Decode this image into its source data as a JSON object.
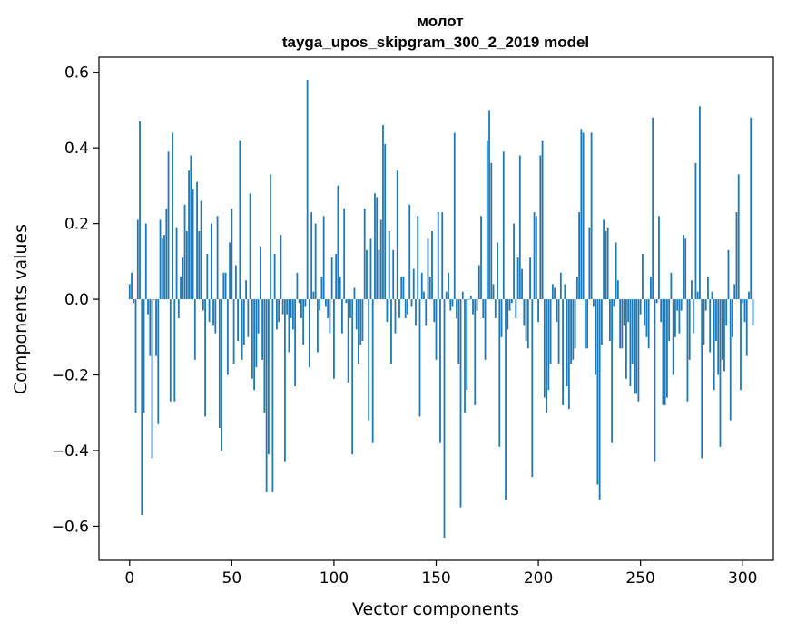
{
  "chart_data": {
    "type": "bar",
    "title": "молот",
    "subtitle": "tayga_upos_skipgram_300_2_2019 model",
    "xlabel": "Vector components",
    "ylabel": "Components values",
    "xlim": [
      -15,
      315
    ],
    "ylim": [
      -0.69,
      0.64
    ],
    "xticks": [
      0,
      50,
      100,
      150,
      200,
      250,
      300
    ],
    "xtick_labels": [
      "0",
      "50",
      "100",
      "150",
      "200",
      "250",
      "300"
    ],
    "yticks": [
      -0.6,
      -0.4,
      -0.2,
      0.0,
      0.2,
      0.4,
      0.6
    ],
    "ytick_labels": [
      "−0.6",
      "−0.4",
      "−0.2",
      "0.0",
      "0.2",
      "0.4",
      "0.6"
    ],
    "bar_color": "#1f77b4",
    "categories_start": 0,
    "values": [
      0.04,
      0.07,
      -0.01,
      -0.3,
      0.21,
      0.47,
      -0.57,
      -0.3,
      0.2,
      -0.04,
      -0.15,
      -0.42,
      0.0,
      -0.15,
      -0.33,
      0.21,
      0.16,
      0.17,
      0.24,
      0.39,
      -0.27,
      0.44,
      -0.27,
      0.19,
      -0.05,
      0.06,
      0.11,
      0.25,
      0.18,
      0.34,
      0.38,
      0.29,
      -0.16,
      0.31,
      0.18,
      0.26,
      -0.03,
      -0.31,
      0.12,
      -0.06,
      0.2,
      -0.07,
      -0.09,
      0.22,
      -0.34,
      -0.4,
      0.07,
      0.07,
      -0.2,
      0.15,
      0.24,
      -0.17,
      0.09,
      -0.11,
      0.42,
      -0.16,
      -0.12,
      0.05,
      -0.1,
      0.28,
      -0.21,
      -0.24,
      -0.18,
      -0.09,
      0.14,
      -0.16,
      -0.3,
      -0.51,
      -0.41,
      0.33,
      -0.51,
      0.12,
      -0.08,
      -0.06,
      0.17,
      -0.04,
      -0.43,
      -0.04,
      -0.14,
      -0.05,
      -0.08,
      -0.23,
      0.07,
      -0.01,
      -0.05,
      -0.12,
      -0.02,
      0.58,
      -0.18,
      0.23,
      0.02,
      0.2,
      -0.14,
      -0.03,
      0.06,
      0.22,
      -0.02,
      -0.05,
      -0.09,
      0.11,
      -0.21,
      0.12,
      0.3,
      0.06,
      -0.09,
      0.24,
      -0.01,
      -0.22,
      -0.05,
      -0.41,
      0.03,
      -0.08,
      -0.17,
      -0.12,
      -0.11,
      0.24,
      0.13,
      -0.32,
      0.16,
      -0.38,
      0.28,
      0.27,
      0.13,
      0.21,
      0.46,
      0.41,
      -0.06,
      0.18,
      -0.17,
      0.13,
      -0.09,
      0.34,
      -0.05,
      0.06,
      0.06,
      -0.05,
      -0.04,
      0.25,
      -0.02,
      0.08,
      -0.07,
      0.22,
      -0.31,
      0.07,
      0.02,
      -0.07,
      0.16,
      0.06,
      0.18,
      -0.06,
      -0.16,
      0.23,
      -0.38,
      0.23,
      -0.63,
      0.02,
      0.07,
      -0.03,
      -0.02,
      0.44,
      -0.05,
      -0.17,
      -0.55,
      0.02,
      -0.3,
      -0.24,
      0.0,
      0.01,
      -0.04,
      -0.28,
      -0.03,
      0.09,
      0.22,
      -0.05,
      -0.16,
      0.42,
      0.5,
      0.36,
      0.04,
      -0.05,
      0.15,
      -0.39,
      -0.1,
      0.39,
      -0.53,
      -0.08,
      -0.03,
      -0.01,
      0.2,
      -0.05,
      0.11,
      0.38,
      0.08,
      -0.07,
      -0.11,
      -0.13,
      0.11,
      -0.47,
      0.23,
      0.22,
      -0.06,
      0.38,
      0.42,
      -0.26,
      -0.3,
      -0.24,
      -0.17,
      0.04,
      0.03,
      -0.06,
      -0.17,
      0.07,
      -0.28,
      0.04,
      -0.23,
      -0.29,
      -0.17,
      -0.16,
      -0.13,
      0.06,
      0.23,
      0.45,
      0.44,
      -0.13,
      -0.13,
      0.19,
      0.44,
      -0.02,
      -0.2,
      -0.49,
      -0.53,
      -0.12,
      0.21,
      0.18,
      0.19,
      -0.11,
      -0.38,
      -0.02,
      0.15,
      0.05,
      -0.13,
      -0.13,
      -0.07,
      -0.21,
      -0.06,
      -0.23,
      -0.17,
      -0.25,
      -0.25,
      -0.27,
      -0.04,
      0.12,
      -0.07,
      -0.1,
      -0.13,
      0.06,
      0.48,
      -0.43,
      -0.01,
      0.22,
      -0.06,
      -0.28,
      -0.28,
      -0.26,
      -0.11,
      0.07,
      -0.2,
      -0.1,
      -0.03,
      -0.09,
      -0.03,
      0.17,
      0.16,
      -0.27,
      -0.16,
      0.05,
      -0.09,
      0.36,
      0.02,
      0.51,
      -0.42,
      -0.12,
      -0.03,
      0.06,
      -0.14,
      0.02,
      -0.24,
      -0.11,
      -0.2,
      -0.39,
      -0.16,
      -0.19,
      -0.07,
      0.13,
      -0.32,
      -0.1,
      0.04,
      0.23,
      0.33,
      -0.24,
      -0.01,
      -0.06,
      -0.15,
      0.02,
      0.48,
      -0.07
    ]
  }
}
